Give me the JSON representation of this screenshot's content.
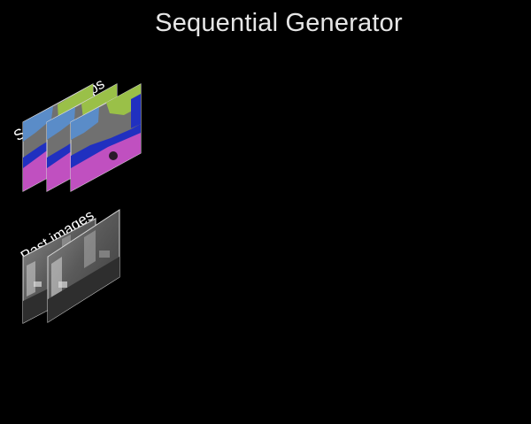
{
  "title": "Sequential Generator",
  "labels": {
    "semantic_maps": "Semantic maps",
    "past_images": "Past images"
  },
  "stacks": {
    "semantic_maps": {
      "frame_count": 3
    },
    "past_images": {
      "frame_count": 2
    }
  },
  "colors": {
    "background": "#000000",
    "title": "#e6e6e6",
    "semantic_road": "#c050c0",
    "semantic_car": "#2030c0",
    "semantic_vegetation": "#9ac048",
    "semantic_sky": "#5a8cc8",
    "semantic_building": "#707070",
    "frame_border": "#d8d8d8"
  }
}
